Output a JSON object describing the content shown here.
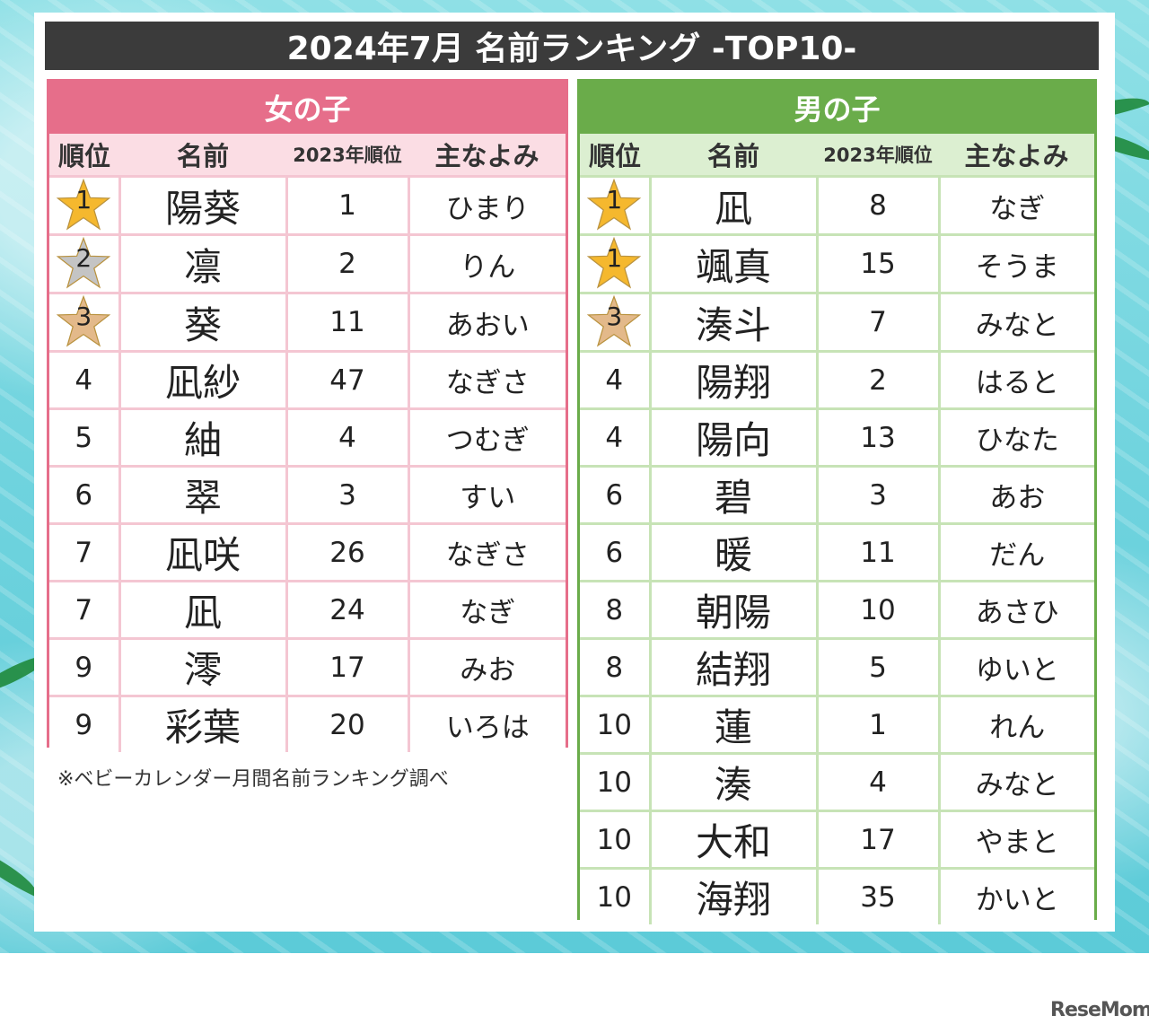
{
  "title": "2024年7月 名前ランキング -TOP10-",
  "headers": {
    "rank": "順位",
    "name": "名前",
    "prev": "2023年順位",
    "reading": "主なよみ"
  },
  "girls": {
    "label": "女の子",
    "rows": [
      {
        "rank": "1",
        "name": "陽葵",
        "prev": "1",
        "reading": "ひまり",
        "medal": "gold"
      },
      {
        "rank": "2",
        "name": "凛",
        "prev": "2",
        "reading": "りん",
        "medal": "silver"
      },
      {
        "rank": "3",
        "name": "葵",
        "prev": "11",
        "reading": "あおい",
        "medal": "bronze"
      },
      {
        "rank": "4",
        "name": "凪紗",
        "prev": "47",
        "reading": "なぎさ"
      },
      {
        "rank": "5",
        "name": "紬",
        "prev": "4",
        "reading": "つむぎ"
      },
      {
        "rank": "6",
        "name": "翠",
        "prev": "3",
        "reading": "すい"
      },
      {
        "rank": "7",
        "name": "凪咲",
        "prev": "26",
        "reading": "なぎさ"
      },
      {
        "rank": "7",
        "name": "凪",
        "prev": "24",
        "reading": "なぎ"
      },
      {
        "rank": "9",
        "name": "澪",
        "prev": "17",
        "reading": "みお"
      },
      {
        "rank": "9",
        "name": "彩葉",
        "prev": "20",
        "reading": "いろは"
      }
    ]
  },
  "boys": {
    "label": "男の子",
    "rows": [
      {
        "rank": "1",
        "name": "凪",
        "prev": "8",
        "reading": "なぎ",
        "medal": "gold"
      },
      {
        "rank": "1",
        "name": "颯真",
        "prev": "15",
        "reading": "そうま",
        "medal": "gold"
      },
      {
        "rank": "3",
        "name": "湊斗",
        "prev": "7",
        "reading": "みなと",
        "medal": "bronze"
      },
      {
        "rank": "4",
        "name": "陽翔",
        "prev": "2",
        "reading": "はると"
      },
      {
        "rank": "4",
        "name": "陽向",
        "prev": "13",
        "reading": "ひなた"
      },
      {
        "rank": "6",
        "name": "碧",
        "prev": "3",
        "reading": "あお"
      },
      {
        "rank": "6",
        "name": "暖",
        "prev": "11",
        "reading": "だん"
      },
      {
        "rank": "8",
        "name": "朝陽",
        "prev": "10",
        "reading": "あさひ"
      },
      {
        "rank": "8",
        "name": "結翔",
        "prev": "5",
        "reading": "ゆいと"
      },
      {
        "rank": "10",
        "name": "蓮",
        "prev": "1",
        "reading": "れん"
      },
      {
        "rank": "10",
        "name": "湊",
        "prev": "4",
        "reading": "みなと"
      },
      {
        "rank": "10",
        "name": "大和",
        "prev": "17",
        "reading": "やまと"
      },
      {
        "rank": "10",
        "name": "海翔",
        "prev": "35",
        "reading": "かいと"
      }
    ]
  },
  "medal_colors": {
    "gold": "#f5b82e",
    "silver": "#c4c4c4",
    "bronze": "#e3b98a"
  },
  "note": "※ベビーカレンダー月間名前ランキング調べ",
  "logo": "ReseMom"
}
